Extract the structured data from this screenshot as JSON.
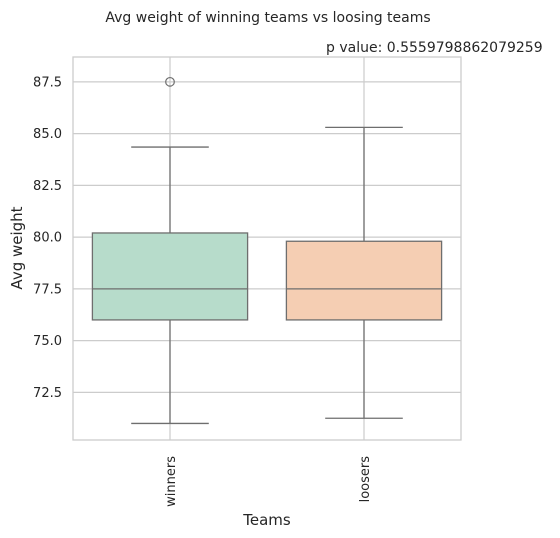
{
  "chart_data": {
    "type": "box",
    "title": "Avg weight of winning teams vs loosing teams",
    "annotation": "p value: 0.5559798862079259",
    "xlabel": "Teams",
    "ylabel": "Avg weight",
    "ylim": [
      70.2,
      88.7
    ],
    "yticks": [
      "72.5",
      "75.0",
      "77.5",
      "80.0",
      "82.5",
      "85.0",
      "87.5"
    ],
    "grid": true,
    "categories": [
      "winners",
      "loosers"
    ],
    "boxes": [
      {
        "category": "winners",
        "whisker_low": 71.0,
        "q1": 76.0,
        "median": 77.5,
        "q3": 80.2,
        "whisker_high": 84.35,
        "outliers": [
          87.5
        ],
        "color": "#b7dccb"
      },
      {
        "category": "loosers",
        "whisker_low": 71.25,
        "q1": 76.0,
        "median": 77.5,
        "q3": 79.8,
        "whisker_high": 85.3,
        "outliers": [],
        "color": "#f5ceb3"
      }
    ]
  }
}
